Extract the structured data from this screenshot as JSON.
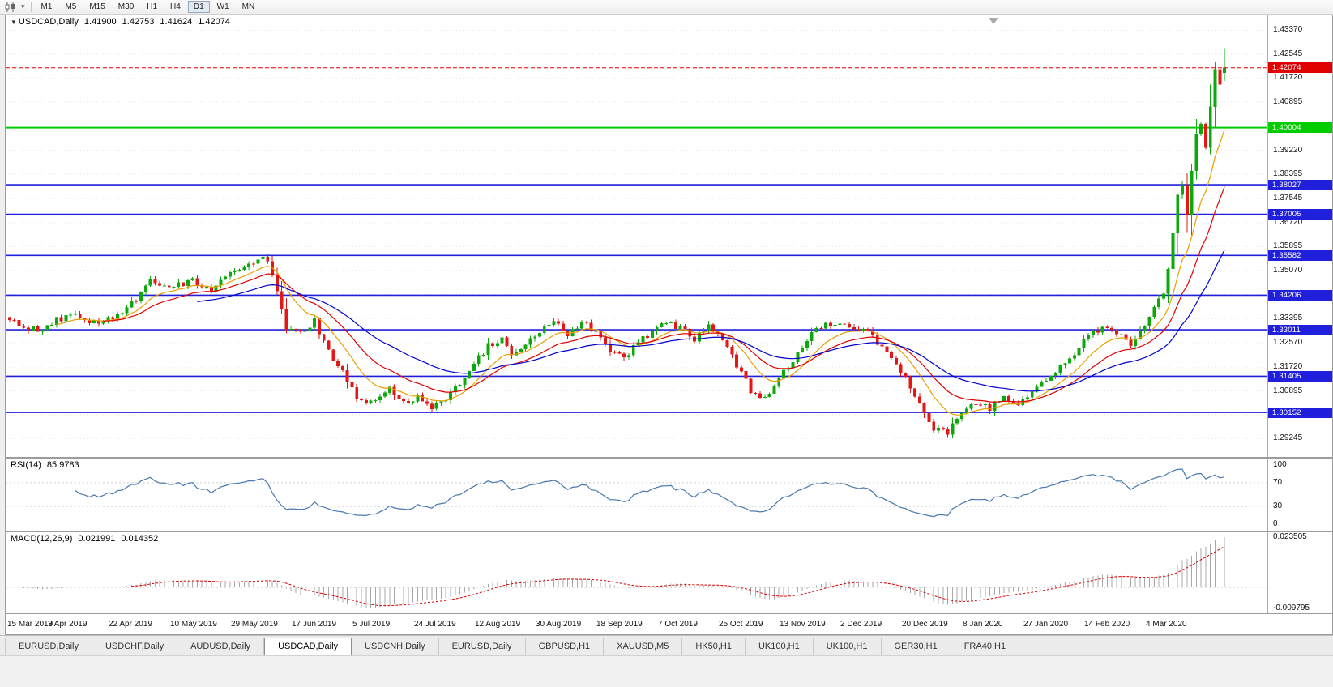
{
  "toolbar": {
    "timeframes": [
      "M1",
      "M5",
      "M15",
      "M30",
      "H1",
      "H4",
      "D1",
      "W1",
      "MN"
    ],
    "active_timeframe": "D1"
  },
  "main_chart": {
    "collapse_arrow": "▼",
    "symbol": "USDCAD,Daily",
    "open": "1.41900",
    "high": "1.42753",
    "low": "1.41624",
    "close": "1.42074",
    "current_price": "1.42074",
    "axis_ticks": [
      "1.43370",
      "1.42545",
      "1.41720",
      "1.40895",
      "1.40070",
      "1.39220",
      "1.38395",
      "1.37545",
      "1.36720",
      "1.35895",
      "1.35070",
      "1.34245",
      "1.33395",
      "1.32570",
      "1.31720",
      "1.30895",
      "1.30070",
      "1.29245"
    ]
  },
  "rsi_panel": {
    "name": "RSI(14)",
    "value": "85.9783",
    "axis_ticks": [
      "100",
      "70",
      "30",
      "0"
    ],
    "level_lines": [
      70,
      30
    ]
  },
  "macd_panel": {
    "name": "MACD(12,26,9)",
    "macd_value": "0.021991",
    "signal_value": "0.014352",
    "axis_ticks": [
      "0.023505",
      "-0.009795"
    ]
  },
  "time_axis": {
    "labels": [
      "15 Mar 2019",
      "3 Apr 2019",
      "22 Apr 2019",
      "10 May 2019",
      "29 May 2019",
      "17 Jun 2019",
      "5 Jul 2019",
      "24 Jul 2019",
      "12 Aug 2019",
      "30 Aug 2019",
      "18 Sep 2019",
      "7 Oct 2019",
      "25 Oct 2019",
      "13 Nov 2019",
      "2 Dec 2019",
      "20 Dec 2019",
      "8 Jan 2020",
      "27 Jan 2020",
      "14 Feb 2020",
      "4 Mar 2020"
    ],
    "candles_per_label": 13
  },
  "tabs": {
    "items": [
      {
        "label": "EURUSD,Daily",
        "active": false
      },
      {
        "label": "USDCHF,Daily",
        "active": false
      },
      {
        "label": "AUDUSD,Daily",
        "active": false
      },
      {
        "label": "USDCAD,Daily",
        "active": true
      },
      {
        "label": "USDCNH,Daily",
        "active": false
      },
      {
        "label": "EURUSD,Daily",
        "active": false
      },
      {
        "label": "GBPUSD,H1",
        "active": false
      },
      {
        "label": "XAUUSD,M5",
        "active": false
      },
      {
        "label": "HK50,H1",
        "active": false
      },
      {
        "label": "UK100,H1",
        "active": false
      },
      {
        "label": "UK100,H1",
        "active": false
      },
      {
        "label": "GER30,H1",
        "active": false
      },
      {
        "label": "FRA40,H1",
        "active": false
      }
    ]
  },
  "chart_data": {
    "type": "candlestick",
    "symbol": "USDCAD",
    "timeframe": "Daily",
    "candle_count": 260,
    "last_candle": {
      "open": 1.419,
      "high": 1.42753,
      "low": 1.41624,
      "close": 1.42074
    },
    "price_axis_range": {
      "max": 1.4372,
      "min": 1.2878
    },
    "close_anchors": [
      [
        0,
        1.3335
      ],
      [
        6,
        1.3295
      ],
      [
        13,
        1.336
      ],
      [
        19,
        1.3315
      ],
      [
        26,
        1.339
      ],
      [
        30,
        1.347
      ],
      [
        34,
        1.3445
      ],
      [
        39,
        1.3475
      ],
      [
        43,
        1.3435
      ],
      [
        47,
        1.3505
      ],
      [
        51,
        1.353
      ],
      [
        54,
        1.356
      ],
      [
        56,
        1.35
      ],
      [
        59,
        1.331
      ],
      [
        62,
        1.329
      ],
      [
        65,
        1.333
      ],
      [
        68,
        1.323
      ],
      [
        71,
        1.315
      ],
      [
        74,
        1.307
      ],
      [
        78,
        1.305
      ],
      [
        81,
        1.3095
      ],
      [
        84,
        1.3045
      ],
      [
        87,
        1.3075
      ],
      [
        90,
        1.3035
      ],
      [
        93,
        1.3065
      ],
      [
        96,
        1.312
      ],
      [
        99,
        1.318
      ],
      [
        102,
        1.325
      ],
      [
        105,
        1.327
      ],
      [
        107,
        1.3215
      ],
      [
        110,
        1.3255
      ],
      [
        113,
        1.33
      ],
      [
        116,
        1.333
      ],
      [
        119,
        1.329
      ],
      [
        122,
        1.333
      ],
      [
        125,
        1.329
      ],
      [
        128,
        1.323
      ],
      [
        131,
        1.32
      ],
      [
        134,
        1.3255
      ],
      [
        137,
        1.33
      ],
      [
        140,
        1.332
      ],
      [
        143,
        1.331
      ],
      [
        146,
        1.327
      ],
      [
        149,
        1.331
      ],
      [
        152,
        1.327
      ],
      [
        155,
        1.318
      ],
      [
        158,
        1.309
      ],
      [
        161,
        1.307
      ],
      [
        164,
        1.313
      ],
      [
        167,
        1.32
      ],
      [
        170,
        1.327
      ],
      [
        173,
        1.331
      ],
      [
        176,
        1.333
      ],
      [
        179,
        1.33
      ],
      [
        182,
        1.331
      ],
      [
        185,
        1.325
      ],
      [
        188,
        1.32
      ],
      [
        191,
        1.313
      ],
      [
        194,
        1.304
      ],
      [
        197,
        1.296
      ],
      [
        200,
        1.295
      ],
      [
        203,
        1.301
      ],
      [
        206,
        1.305
      ],
      [
        209,
        1.303
      ],
      [
        212,
        1.307
      ],
      [
        215,
        1.304
      ],
      [
        218,
        1.309
      ],
      [
        221,
        1.312
      ],
      [
        224,
        1.317
      ],
      [
        227,
        1.322
      ],
      [
        230,
        1.328
      ],
      [
        233,
        1.331
      ],
      [
        236,
        1.329
      ],
      [
        239,
        1.325
      ],
      [
        242,
        1.331
      ],
      [
        244,
        1.337
      ],
      [
        246,
        1.344
      ],
      [
        248,
        1.362
      ],
      [
        249,
        1.375
      ],
      [
        250,
        1.38
      ],
      [
        251,
        1.37
      ],
      [
        252,
        1.384
      ],
      [
        253,
        1.397
      ],
      [
        254,
        1.401
      ],
      [
        255,
        1.394
      ],
      [
        256,
        1.408
      ],
      [
        257,
        1.419
      ],
      [
        258,
        1.415
      ],
      [
        259,
        1.42074
      ]
    ],
    "horizontal_levels": [
      {
        "price": 1.40004,
        "label": "1.40004",
        "color": "#00CC00"
      },
      {
        "price": 1.38027,
        "label": "1.38027",
        "color": "#2020DC"
      },
      {
        "price": 1.37005,
        "label": "1.37005",
        "color": "#2020DC"
      },
      {
        "price": 1.35582,
        "label": "1.35582",
        "color": "#2020DC"
      },
      {
        "price": 1.34206,
        "label": "1.34206",
        "color": "#2020DC"
      },
      {
        "price": 1.33011,
        "label": "1.33011",
        "color": "#2020DC"
      },
      {
        "price": 1.31405,
        "label": "1.31405",
        "color": "#2020DC"
      },
      {
        "price": 1.30152,
        "label": "1.30152",
        "color": "#2020DC"
      }
    ],
    "moving_averages": [
      {
        "period": 10,
        "color": "#E8A000"
      },
      {
        "period": 20,
        "color": "#E00000"
      },
      {
        "period": 40,
        "color": "#0000D0"
      }
    ],
    "rsi": {
      "period": 14,
      "current": 85.9783
    },
    "macd": {
      "fast": 12,
      "slow": 26,
      "signal": 9,
      "current": 0.021991,
      "signal_current": 0.014352,
      "axis_max": 0.023505,
      "axis_min": -0.009795
    },
    "colors": {
      "up": "#0CA80C",
      "down": "#E41616",
      "rsi_line": "#4878B0",
      "macd_histogram": "#A8A8A8",
      "macd_signal": "#D40000",
      "current_price": "#E00000",
      "grid": "#E7E7E7"
    }
  }
}
